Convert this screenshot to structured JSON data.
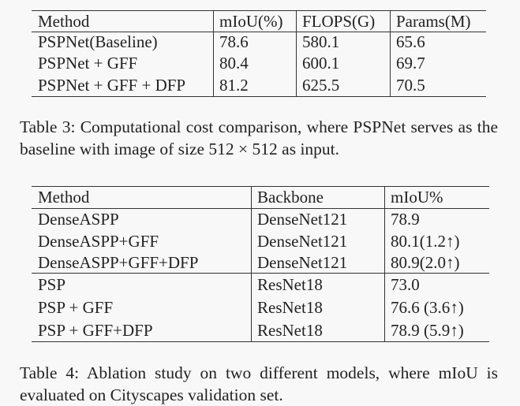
{
  "table_3": {
    "header": [
      "Method",
      "mIoU(%)",
      "FLOPS(G)",
      "Params(M)"
    ],
    "rows": [
      [
        "PSPNet(Baseline)",
        "78.6",
        "580.1",
        "65.6"
      ],
      [
        "PSPNet + GFF",
        "80.4",
        "600.1",
        "69.7"
      ],
      [
        "PSPNet + GFF + DFP",
        "81.2",
        "625.5",
        "70.5"
      ]
    ]
  },
  "caption_3": "Table 3: Computational cost comparison, where PSPNet serves as the baseline with image of size 512 × 512 as input.",
  "table_4": {
    "header": [
      "Method",
      "Backbone",
      "mIoU%"
    ],
    "rows": [
      [
        "DenseASPP",
        "DenseNet121",
        "78.9"
      ],
      [
        "DenseASPP+GFF",
        "DenseNet121",
        "80.1(1.2↑)"
      ],
      [
        "DenseASPP+GFF+DFP",
        "DenseNet121",
        "80.9(2.0↑)"
      ],
      [
        "PSP",
        "ResNet18",
        "73.0"
      ],
      [
        "PSP + GFF",
        "ResNet18",
        "76.6 (3.6↑)"
      ],
      [
        "PSP + GFF+DFP",
        "ResNet18",
        "78.9 (5.9↑)"
      ]
    ]
  },
  "caption_4": "Table 4: Ablation study on two different models, where mIoU is evaluated on Cityscapes validation set."
}
